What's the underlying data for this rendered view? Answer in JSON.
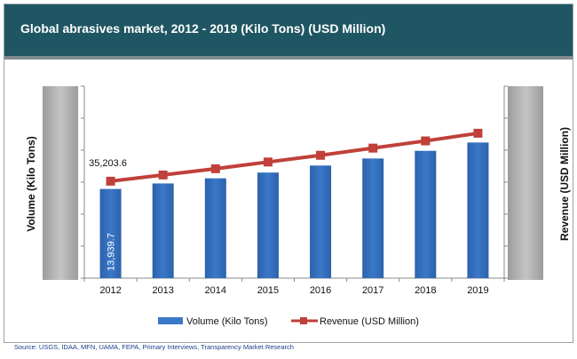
{
  "title": "Global abrasives market, 2012 - 2019 (Kilo Tons) (USD Million)",
  "source": "Source: USGS, IDAA, MFN, UAMA, FEPA, Primary Interviews, Transparency Market Research",
  "colors": {
    "header": "#1f5663",
    "bar": "#3a78c8",
    "line": "#c0403a"
  },
  "chart_data": {
    "type": "bar",
    "categories": [
      "2012",
      "2013",
      "2014",
      "2015",
      "2016",
      "2017",
      "2018",
      "2019"
    ],
    "series": [
      {
        "name": "Volume (Kilo Tons)",
        "type": "bar",
        "axis": "left",
        "values": [
          13939.7,
          14800,
          15600,
          16500,
          17600,
          18700,
          19900,
          21200
        ]
      },
      {
        "name": "Revenue (USD Million)",
        "type": "line",
        "axis": "right",
        "values": [
          35203.6,
          36500,
          37800,
          39200,
          40600,
          42100,
          43600,
          45200
        ]
      }
    ],
    "data_labels": {
      "bar_first": "13,939.7",
      "line_first": "35,203.6"
    },
    "ylabel": "Volume (Kilo Tons)",
    "y2label": "Revenue (USD Million)",
    "ylim": [
      0,
      30000
    ],
    "y2lim": [
      15000,
      55000
    ],
    "legend": "bottom",
    "grid": false
  }
}
